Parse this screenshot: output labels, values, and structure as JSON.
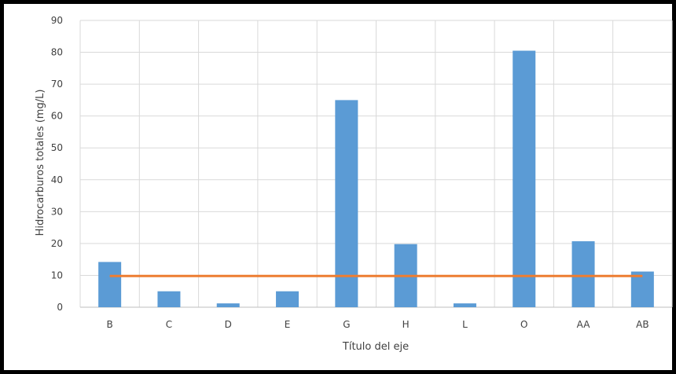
{
  "chart_data": {
    "type": "bar",
    "categories": [
      "B",
      "C",
      "D",
      "E",
      "G",
      "H",
      "L",
      "O",
      "AA",
      "AB"
    ],
    "series": [
      {
        "values": [
          14.2,
          5.0,
          1.2,
          5.0,
          65.0,
          19.8,
          1.2,
          80.5,
          20.7,
          11.2
        ]
      }
    ],
    "reference_line": {
      "value": 9.8,
      "color": "#ED7D31"
    },
    "title": "",
    "xlabel": "Título del eje",
    "ylabel": "Hidrocarburos totales (mg/L)",
    "ylim": [
      0,
      90
    ],
    "yticks": [
      0,
      10,
      20,
      30,
      40,
      50,
      60,
      70,
      80,
      90
    ],
    "grid": true,
    "colors": {
      "bar": "#5B9BD5",
      "grid": "#D9D9D9",
      "axis": "#BFBFBF",
      "frame": "#000000"
    }
  }
}
